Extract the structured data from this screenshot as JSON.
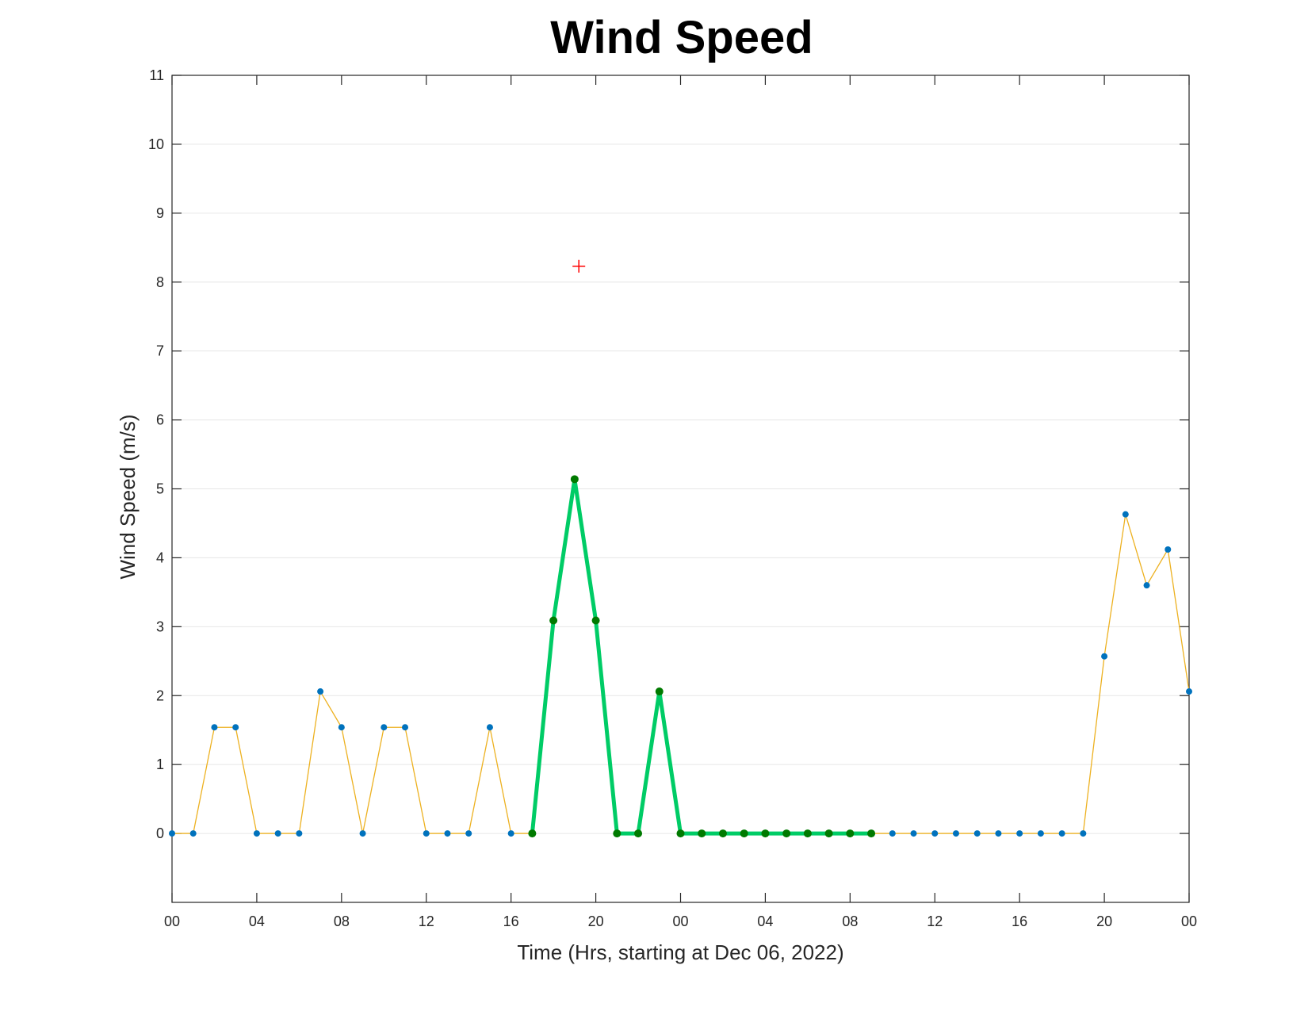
{
  "chart_data": {
    "type": "line",
    "title": "Wind Speed",
    "xlabel": "Time (Hrs, starting at Dec 06, 2022)",
    "ylabel": "Wind Speed (m/s)",
    "xlim": [
      0,
      48
    ],
    "ylim": [
      -1,
      11
    ],
    "grid": "y",
    "x_ticks": [
      0,
      4,
      8,
      12,
      16,
      20,
      24,
      28,
      32,
      36,
      40,
      44,
      48
    ],
    "x_tick_labels": [
      "00",
      "04",
      "08",
      "12",
      "16",
      "20",
      "00",
      "04",
      "08",
      "12",
      "16",
      "20",
      "00"
    ],
    "y_ticks": [
      0,
      1,
      2,
      3,
      4,
      5,
      6,
      7,
      8,
      9,
      10,
      11
    ],
    "y_tick_labels": [
      "0",
      "1",
      "2",
      "3",
      "4",
      "5",
      "6",
      "7",
      "8",
      "9",
      "10",
      "11"
    ],
    "series": [
      {
        "style": "thin-line-with-markers",
        "line_color": "#EDB120",
        "marker_color": "#0072BD",
        "x": [
          0,
          1,
          2,
          3,
          4,
          5,
          6,
          7,
          8,
          9,
          10,
          11,
          12,
          13,
          14,
          15,
          16,
          17,
          18,
          19,
          20,
          21,
          22,
          23,
          24,
          25,
          26,
          27,
          28,
          29,
          30,
          31,
          32,
          33,
          34,
          35,
          36,
          37,
          38,
          39,
          40,
          41,
          42,
          43,
          44,
          45,
          46,
          47,
          48
        ],
        "y": [
          0,
          0,
          1.54,
          1.54,
          0,
          0,
          0,
          2.06,
          1.54,
          0,
          1.54,
          1.54,
          0,
          0,
          0,
          1.54,
          0,
          0,
          3.09,
          5.14,
          3.09,
          0,
          0,
          2.06,
          0,
          0,
          0,
          0,
          0,
          0,
          0,
          0,
          0,
          0,
          0,
          0,
          0,
          0,
          0,
          0,
          0,
          0,
          0,
          0,
          2.57,
          4.63,
          3.6,
          4.12,
          2.06
        ]
      },
      {
        "style": "thick-highlight",
        "line_color": "#00CC66",
        "marker_color": "#007A00",
        "x": [
          17,
          18,
          19,
          20,
          21,
          22,
          23,
          24,
          25,
          26,
          27,
          28,
          29,
          30,
          31,
          32,
          33
        ],
        "y": [
          0,
          3.09,
          5.14,
          3.09,
          0,
          0,
          2.06,
          0,
          0,
          0,
          0,
          0,
          0,
          0,
          0,
          0,
          0
        ]
      }
    ],
    "annotation_point": {
      "marker": "+",
      "color": "#FF0000",
      "x": 19.2,
      "y": 8.23
    }
  }
}
